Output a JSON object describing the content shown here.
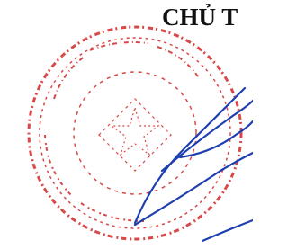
{
  "header": {
    "title": "CHỦ T"
  }
}
